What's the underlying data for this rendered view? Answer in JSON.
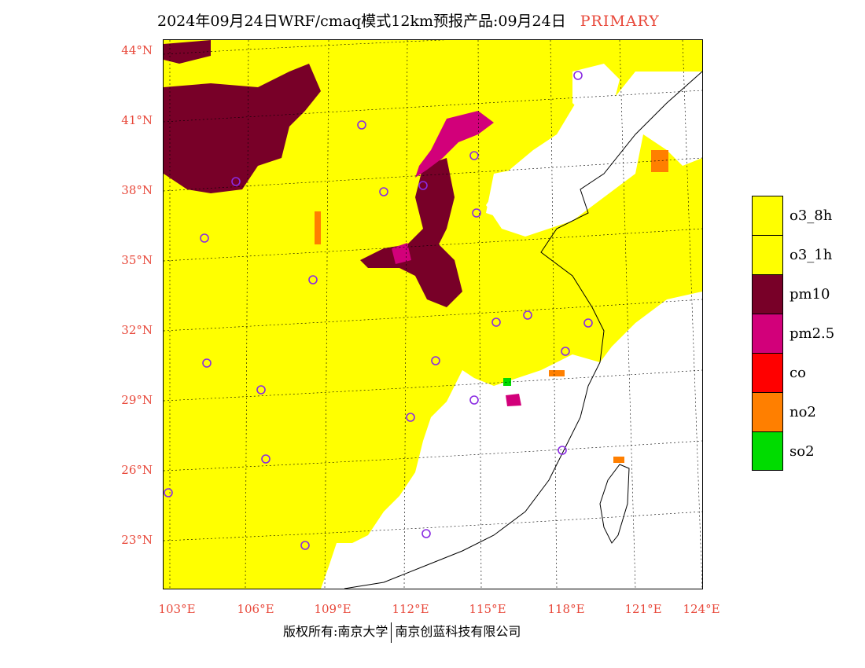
{
  "header": {
    "title": "2024年09月24日WRF/cmaq模式12km预报产品:09月24日",
    "tag": "PRIMARY"
  },
  "map": {
    "lat_ticks": [
      "44°N",
      "41°N",
      "38°N",
      "35°N",
      "32°N",
      "29°N",
      "26°N",
      "23°N"
    ],
    "lon_ticks": [
      "103°E",
      "106°E",
      "109°E",
      "112°E",
      "115°E",
      "118°E",
      "121°E",
      "124°E"
    ],
    "colors": {
      "o3_8h": "#ffff00",
      "o3_1h": "#ffff00",
      "pm10": "#780028",
      "pm2_5": "#d2007a",
      "co": "#ff0000",
      "no2": "#ff7f00",
      "so2": "#00dc00"
    }
  },
  "legend": [
    {
      "label": "o3_8h",
      "color": "#ffff00"
    },
    {
      "label": "o3_1h",
      "color": "#ffff00"
    },
    {
      "label": "pm10",
      "color": "#780028"
    },
    {
      "label": "pm2.5",
      "color": "#d2007a"
    },
    {
      "label": "co",
      "color": "#ff0000"
    },
    {
      "label": "no2",
      "color": "#ff7f00"
    },
    {
      "label": "so2",
      "color": "#00dc00"
    }
  ],
  "footer": {
    "left": "版权所有:南京大学",
    "right": "南京创蓝科技有限公司"
  }
}
